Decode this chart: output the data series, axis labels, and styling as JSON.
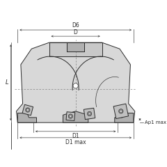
{
  "bg_color": "#ffffff",
  "line_color": "#2a2a2a",
  "body_fill": "#d8d8d8",
  "body_fill2": "#c8c8c8",
  "dark_fill": "#b0b0b0",
  "slot_fill": "#e0e0e0",
  "insert_fill": "#c0c0c0",
  "insert_dark": "#909090",
  "dim_color": "#333333",
  "dash_color": "#777777",
  "labels": {
    "D6": "D6",
    "D": "D",
    "D1": "D1",
    "D1max": "D1 max",
    "L": "L",
    "Ap1max": "Ap1 max"
  },
  "figsize": [
    2.4,
    2.4
  ],
  "dpi": 100
}
